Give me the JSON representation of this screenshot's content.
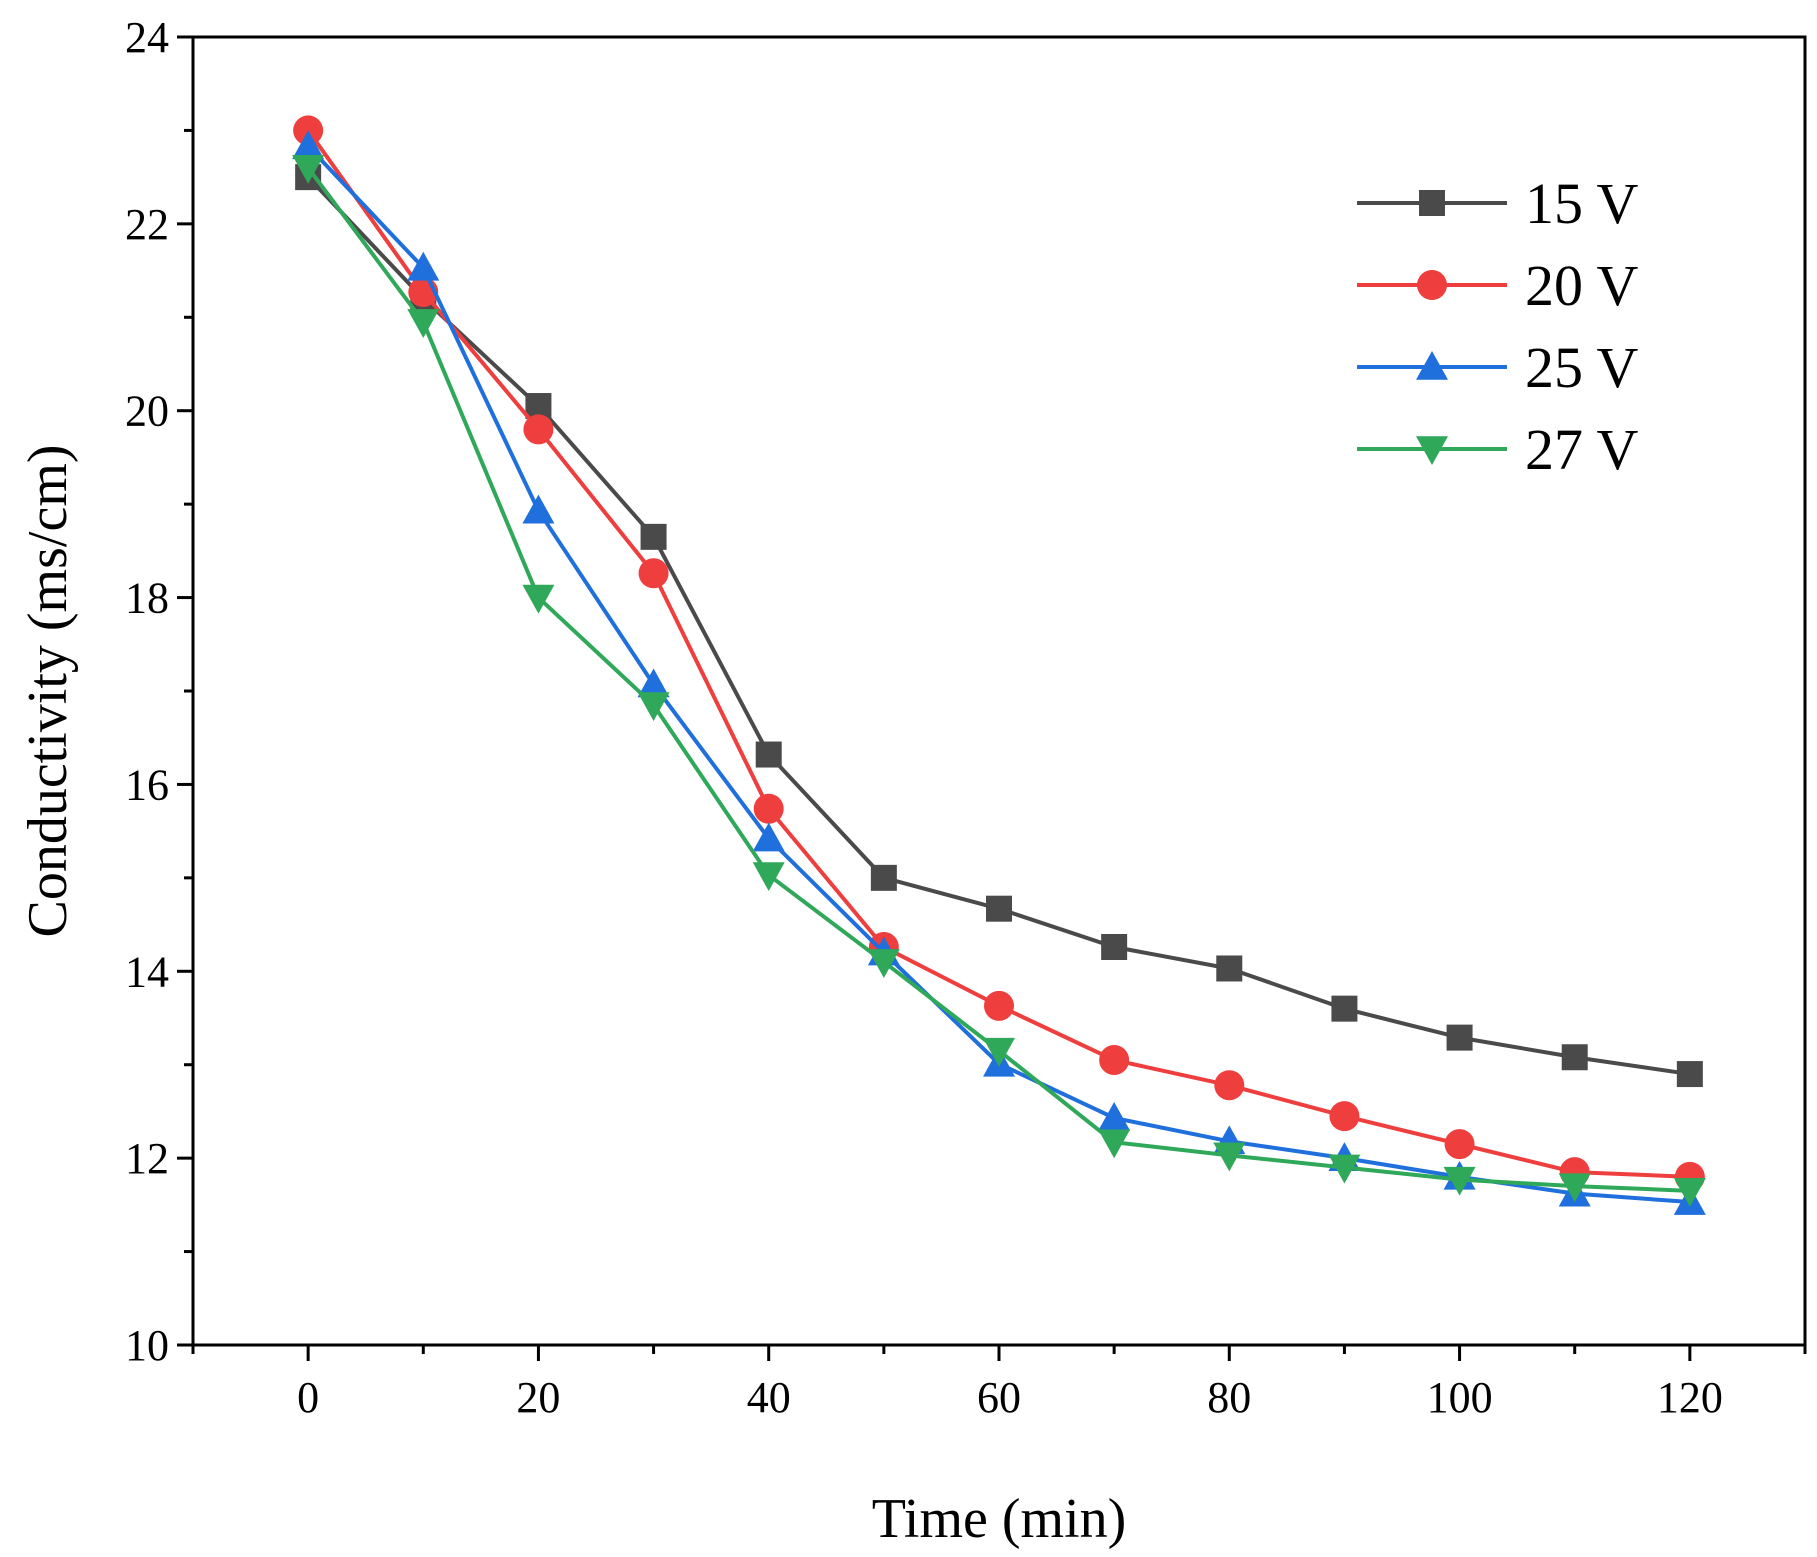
{
  "chart_data": {
    "type": "line",
    "title": "",
    "xlabel": "Time (min)",
    "ylabel": "Conductivity (ms/cm)",
    "xlim": [
      -10,
      130
    ],
    "ylim": [
      10,
      24
    ],
    "xticks": [
      0,
      20,
      40,
      60,
      80,
      100,
      120
    ],
    "yticks": [
      10,
      12,
      14,
      16,
      18,
      20,
      22,
      24
    ],
    "x": [
      0,
      10,
      20,
      30,
      40,
      50,
      60,
      70,
      80,
      90,
      100,
      110,
      120
    ],
    "legend_position": "top-right",
    "series": [
      {
        "name": "15 V",
        "color": "#4a4a4a",
        "marker": "square",
        "values": [
          22.5,
          21.2,
          20.05,
          18.65,
          16.32,
          15.0,
          14.67,
          14.26,
          14.03,
          13.6,
          13.29,
          13.08,
          12.9
        ]
      },
      {
        "name": "20 V",
        "color": "#ef3e3e",
        "marker": "circle",
        "values": [
          23.0,
          21.27,
          19.8,
          18.26,
          15.74,
          14.26,
          13.63,
          13.05,
          12.78,
          12.45,
          12.15,
          11.85,
          11.8
        ]
      },
      {
        "name": "25 V",
        "color": "#1f6fdc",
        "marker": "triangle-up",
        "values": [
          22.83,
          21.53,
          18.93,
          17.07,
          15.42,
          14.2,
          13.01,
          12.43,
          12.18,
          12.0,
          11.8,
          11.62,
          11.53
        ]
      },
      {
        "name": "27 V",
        "color": "#2fa85a",
        "marker": "triangle-down",
        "values": [
          22.6,
          20.95,
          18.0,
          16.85,
          15.03,
          14.1,
          13.15,
          12.17,
          12.03,
          11.9,
          11.77,
          11.7,
          11.65
        ]
      }
    ]
  }
}
